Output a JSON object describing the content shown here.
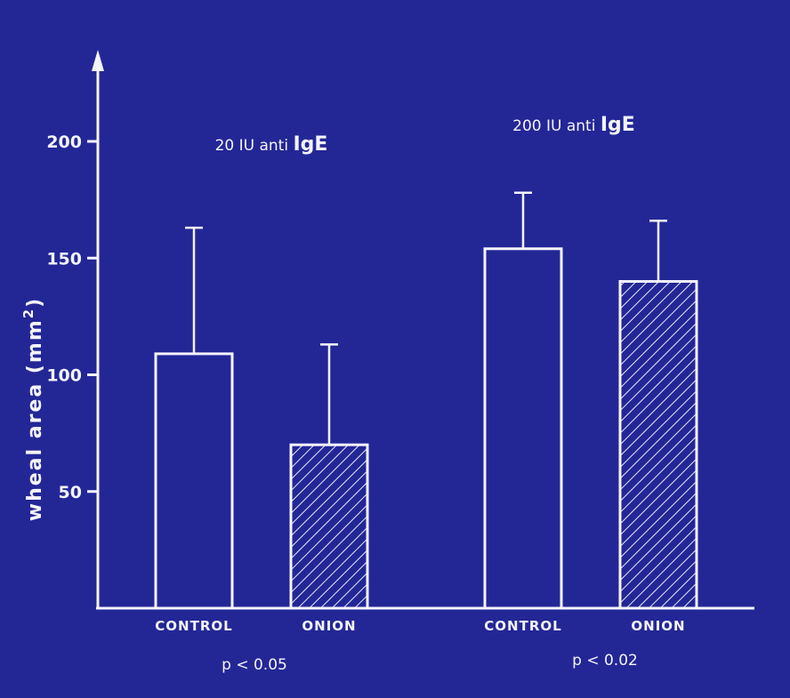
{
  "chart_data": {
    "type": "bar",
    "ylabel_text": "wheal area (mm",
    "ylabel_sup": "2",
    "ylabel_close": ")",
    "ylim": [
      0,
      210
    ],
    "yticks": [
      50,
      100,
      150,
      200
    ],
    "grid": false,
    "groups": [
      {
        "label_pre": "20 IU anti ",
        "label_big": "IgE",
        "p_value": "p < 0.05",
        "bars": [
          {
            "category": "CONTROL",
            "value": 109,
            "error": 54,
            "hatched": false
          },
          {
            "category": "ONION",
            "value": 70,
            "error": 43,
            "hatched": true
          }
        ]
      },
      {
        "label_pre": "200 IU anti ",
        "label_big": "IgE",
        "p_value": "p < 0.02",
        "bars": [
          {
            "category": "CONTROL",
            "value": 154,
            "error": 24,
            "hatched": false
          },
          {
            "category": "ONION",
            "value": 140,
            "error": 26,
            "hatched": true
          }
        ]
      }
    ]
  }
}
